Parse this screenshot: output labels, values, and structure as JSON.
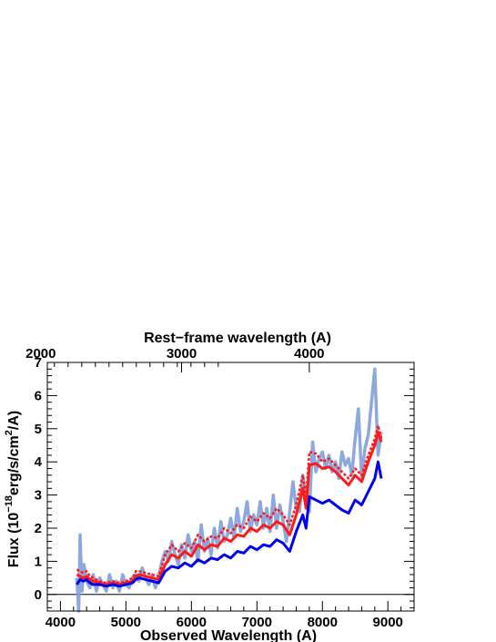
{
  "chart_data": {
    "type": "line",
    "xlabel": "Observed Wavelength (A)",
    "ylabel": "Flux (10^-18 erg/s/cm^2/A)",
    "ylabel_parts": {
      "pre": "Flux (10",
      "exp1": "−18",
      "mid": "erg/s/cm",
      "exp2": "2",
      "post": "/A)"
    },
    "top_xlabel": "Rest−frame wavelength (A)",
    "xlim": [
      3800,
      9400
    ],
    "ylim": [
      -0.5,
      7
    ],
    "x_ticks": [
      4000,
      5000,
      6000,
      7000,
      8000,
      9000
    ],
    "y_ticks": [
      0,
      1,
      2,
      3,
      4,
      5,
      6,
      7
    ],
    "top_x_ticks": [
      {
        "label": "2000",
        "observed": 3700
      },
      {
        "label": "3000",
        "observed": 5850
      },
      {
        "label": "4000",
        "observed": 7800
      }
    ],
    "zero_line": 0,
    "colors": {
      "observed": "#7f9fd8",
      "model_red": "#ff1a1a",
      "model_blue": "#0000ee"
    },
    "series": [
      {
        "style": "noisy-band",
        "x": [
          4250,
          4280,
          4300,
          4330,
          4360,
          4400,
          4450,
          4500,
          4550,
          4600,
          4650,
          4700,
          4750,
          4800,
          4850,
          4900,
          4950,
          5000,
          5050,
          5100,
          5150,
          5200,
          5250,
          5300,
          5350,
          5400,
          5450,
          5500,
          5550,
          5600,
          5650,
          5700,
          5750,
          5800,
          5850,
          5900,
          5950,
          6000,
          6050,
          6100,
          6150,
          6200,
          6250,
          6300,
          6350,
          6400,
          6450,
          6500,
          6550,
          6600,
          6650,
          6700,
          6750,
          6800,
          6850,
          6900,
          6950,
          7000,
          7050,
          7100,
          7150,
          7200,
          7250,
          7300,
          7350,
          7400,
          7450,
          7500,
          7550,
          7600,
          7650,
          7700,
          7750,
          7800,
          7850,
          7900,
          7950,
          8000,
          8050,
          8100,
          8150,
          8200,
          8250,
          8300,
          8350,
          8400,
          8450,
          8500,
          8550,
          8600,
          8650,
          8700,
          8750,
          8800,
          8850,
          8900
        ],
        "y": [
          0.5,
          -0.5,
          1.8,
          0.1,
          0.9,
          0.4,
          0.2,
          0.6,
          0.1,
          0.5,
          0.3,
          0.1,
          0.6,
          0.2,
          0.4,
          0.1,
          0.6,
          0.3,
          0.2,
          0.5,
          0.6,
          0.4,
          0.8,
          0.5,
          0.3,
          0.6,
          0.2,
          0.5,
          1.0,
          1.3,
          1.0,
          1.6,
          1.2,
          0.9,
          1.5,
          1.1,
          1.8,
          1.3,
          1.6,
          1.0,
          2.1,
          1.3,
          1.7,
          1.2,
          2.0,
          1.4,
          2.2,
          1.6,
          1.8,
          2.3,
          1.7,
          2.6,
          1.9,
          2.2,
          2.8,
          1.9,
          2.4,
          2.1,
          2.8,
          2.0,
          2.6,
          1.9,
          3.0,
          2.0,
          2.7,
          2.2,
          1.6,
          2.5,
          3.4,
          2.6,
          2.5,
          3.6,
          2.9,
          2.5,
          4.6,
          3.7,
          4.1,
          4.3,
          3.8,
          4.2,
          3.7,
          4.0,
          3.5,
          4.3,
          3.9,
          4.1,
          3.6,
          4.7,
          5.6,
          3.5,
          4.4,
          4.8,
          5.8,
          6.8,
          4.2,
          4.9
        ]
      },
      {
        "style": "solid",
        "color_key": "model_red",
        "x": [
          4250,
          4300,
          4350,
          4400,
          4450,
          4500,
          4600,
          4700,
          4800,
          4900,
          5000,
          5100,
          5150,
          5200,
          5300,
          5400,
          5500,
          5600,
          5700,
          5800,
          5900,
          6000,
          6100,
          6200,
          6300,
          6400,
          6500,
          6600,
          6700,
          6800,
          6900,
          7000,
          7100,
          7200,
          7300,
          7400,
          7500,
          7600,
          7700,
          7750,
          7800,
          7900,
          8000,
          8100,
          8200,
          8300,
          8400,
          8500,
          8600,
          8700,
          8800,
          8850,
          8900
        ],
        "y": [
          0.6,
          0.55,
          0.5,
          0.55,
          0.45,
          0.4,
          0.35,
          0.3,
          0.35,
          0.3,
          0.35,
          0.4,
          0.55,
          0.6,
          0.55,
          0.5,
          0.45,
          0.9,
          1.2,
          1.1,
          1.3,
          1.15,
          1.5,
          1.35,
          1.5,
          1.45,
          1.7,
          1.6,
          1.8,
          1.75,
          2.0,
          1.9,
          2.1,
          2.0,
          2.2,
          2.1,
          1.8,
          2.4,
          3.2,
          2.6,
          3.9,
          3.95,
          3.8,
          3.85,
          3.7,
          3.5,
          3.3,
          3.6,
          3.4,
          4.0,
          4.5,
          4.9,
          4.6
        ]
      },
      {
        "style": "dotted",
        "color_key": "model_red",
        "x": [
          4250,
          4300,
          4350,
          4400,
          4450,
          4500,
          4600,
          4700,
          4800,
          4900,
          5000,
          5100,
          5150,
          5200,
          5300,
          5400,
          5500,
          5600,
          5700,
          5800,
          5900,
          6000,
          6100,
          6200,
          6300,
          6400,
          6500,
          6600,
          6700,
          6800,
          6900,
          7000,
          7100,
          7200,
          7300,
          7400,
          7500,
          7600,
          7700,
          7750,
          7800,
          7900,
          8000,
          8100,
          8200,
          8300,
          8400,
          8500,
          8600,
          8700,
          8800,
          8850,
          8900
        ],
        "y": [
          0.75,
          0.7,
          0.65,
          0.7,
          0.55,
          0.5,
          0.4,
          0.35,
          0.4,
          0.35,
          0.4,
          0.5,
          0.7,
          0.7,
          0.65,
          0.6,
          0.55,
          1.2,
          1.5,
          1.3,
          1.55,
          1.4,
          1.8,
          1.6,
          1.75,
          1.7,
          2.0,
          1.85,
          2.1,
          2.0,
          2.35,
          2.2,
          2.45,
          2.3,
          2.6,
          2.4,
          2.1,
          2.7,
          3.6,
          2.9,
          4.3,
          4.25,
          4.0,
          4.1,
          3.9,
          3.7,
          3.5,
          3.8,
          3.6,
          4.2,
          4.7,
          5.1,
          4.7
        ]
      },
      {
        "style": "solid",
        "color_key": "model_blue",
        "x": [
          4250,
          4300,
          4350,
          4400,
          4450,
          4500,
          4600,
          4700,
          4800,
          4900,
          5000,
          5100,
          5150,
          5200,
          5300,
          5400,
          5500,
          5600,
          5700,
          5800,
          5900,
          6000,
          6100,
          6200,
          6300,
          6400,
          6500,
          6600,
          6700,
          6800,
          6900,
          7000,
          7100,
          7200,
          7300,
          7400,
          7500,
          7600,
          7700,
          7750,
          7800,
          7900,
          8000,
          8100,
          8200,
          8300,
          8400,
          8500,
          8600,
          8700,
          8800,
          8850,
          8900
        ],
        "y": [
          0.3,
          0.45,
          0.4,
          0.45,
          0.35,
          0.3,
          0.3,
          0.25,
          0.3,
          0.25,
          0.3,
          0.35,
          0.45,
          0.5,
          0.45,
          0.4,
          0.35,
          0.7,
          0.85,
          0.8,
          0.95,
          0.85,
          1.05,
          0.95,
          1.1,
          1.05,
          1.2,
          1.1,
          1.3,
          1.25,
          1.45,
          1.35,
          1.5,
          1.45,
          1.65,
          1.55,
          1.3,
          1.9,
          2.4,
          2.0,
          2.95,
          2.85,
          2.75,
          2.85,
          2.7,
          2.55,
          2.45,
          2.85,
          2.7,
          3.1,
          3.5,
          4.0,
          3.5
        ]
      }
    ]
  }
}
